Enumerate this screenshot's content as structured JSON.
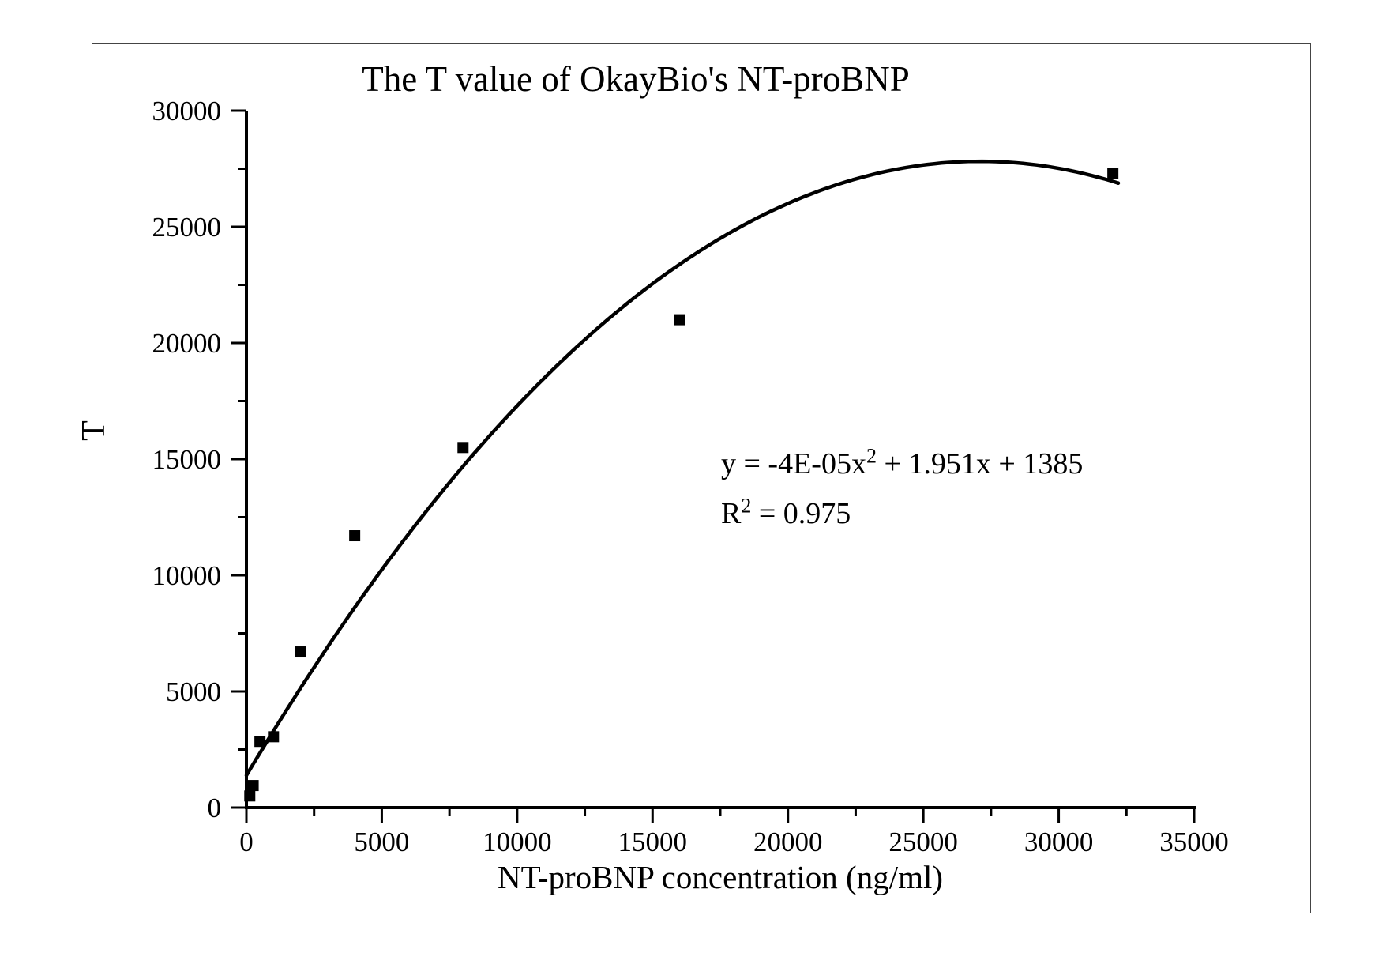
{
  "chart_data": {
    "type": "scatter",
    "title": "The T value of OkayBio's NT-proBNP",
    "xlabel": "NT-proBNP concentration (ng/ml)",
    "ylabel": "T",
    "xlim": [
      0,
      35000
    ],
    "ylim": [
      0,
      30000
    ],
    "grid": false,
    "legend": "none",
    "marker": "filled-square",
    "marker_color": "#000000",
    "line_color": "#000000",
    "x_major_ticks": [
      0,
      5000,
      10000,
      15000,
      20000,
      25000,
      30000,
      35000
    ],
    "x_tick_labels": [
      "0",
      "5000",
      "10000",
      "15000",
      "20000",
      "25000",
      "30000",
      "35000"
    ],
    "x_minor_tick_step": 2500,
    "y_major_ticks": [
      0,
      5000,
      10000,
      15000,
      20000,
      25000,
      30000
    ],
    "y_tick_labels": [
      "0",
      "5000",
      "10000",
      "15000",
      "20000",
      "25000",
      "30000"
    ],
    "y_minor_tick_step": 2500,
    "points": [
      {
        "x": 125,
        "y": 500
      },
      {
        "x": 250,
        "y": 950
      },
      {
        "x": 500,
        "y": 2850
      },
      {
        "x": 1000,
        "y": 3050
      },
      {
        "x": 2000,
        "y": 6700
      },
      {
        "x": 4000,
        "y": 11700
      },
      {
        "x": 8000,
        "y": 15500
      },
      {
        "x": 16000,
        "y": 21000
      },
      {
        "x": 32000,
        "y": 27300
      }
    ],
    "trendline": {
      "type": "quadratic",
      "equation": {
        "pre": "y = -4E-05x",
        "sup": "2",
        "post": " + 1.951x + 1385"
      },
      "r_squared": {
        "pre": "R",
        "sup": "2",
        "post": " = 0.975"
      },
      "draw_coefficients": {
        "a": -3.6e-05,
        "b": 1.951,
        "c": 1385
      },
      "x_range": [
        0,
        32200
      ]
    }
  }
}
